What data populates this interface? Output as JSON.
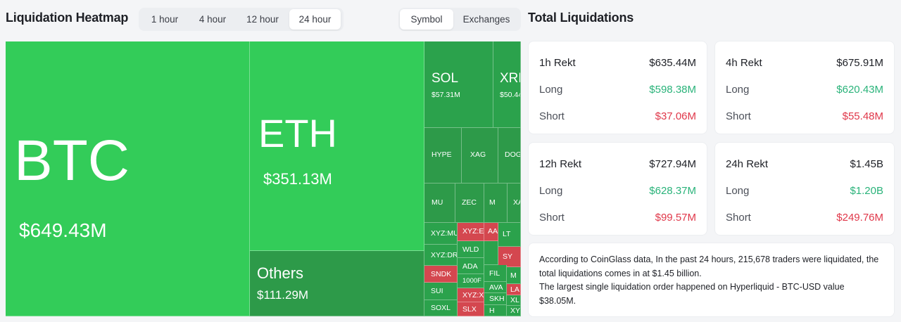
{
  "heatmap": {
    "title": "Liquidation Heatmap",
    "time_options": [
      "1 hour",
      "4 hour",
      "12 hour",
      "24 hour"
    ],
    "active_time": "24 hour",
    "view_options": [
      "Symbol",
      "Exchanges"
    ],
    "active_view": "Symbol",
    "tiles": {
      "btc": {
        "symbol": "BTC",
        "value": "$649.43M"
      },
      "eth": {
        "symbol": "ETH",
        "value": "$351.13M"
      },
      "others": {
        "symbol": "Others",
        "value": "$111.29M"
      },
      "sol": {
        "symbol": "SOL",
        "value": "$57.31M"
      },
      "xrp": {
        "symbol": "XRP",
        "value": "$50.44"
      },
      "hype": "HYPE",
      "xag": "XAG",
      "doge": "DOG",
      "mu": "MU",
      "zec": "ZEC",
      "m": "M",
      "xa": "XA",
      "xyz_mu": "XYZ:MU",
      "xyz_e": "XYZ:E",
      "aa": "AA",
      "xyz_dr": "XYZ:DR",
      "wld": "WLD",
      "sy": "SY",
      "snxd": "SNDK",
      "ada": "ADA",
      "fil": "FIL",
      "m2": "M",
      "sui": "SUI",
      "n1000": "1000F",
      "ava": "AVA",
      "la": "LA",
      "xyz_x": "XYZ:X",
      "skh": "SKH",
      "xl": "XL",
      "soxl": "SOXL",
      "slx": "SLX",
      "h": "H",
      "xy": "XY",
      "lt": "LT"
    }
  },
  "total": {
    "title": "Total Liquidations",
    "labels": {
      "long": "Long",
      "short": "Short"
    },
    "cards": [
      {
        "title": "1h Rekt",
        "total": "$635.44M",
        "long": "$598.38M",
        "short": "$37.06M"
      },
      {
        "title": "4h Rekt",
        "total": "$675.91M",
        "long": "$620.43M",
        "short": "$55.48M"
      },
      {
        "title": "12h Rekt",
        "total": "$727.94M",
        "long": "$628.37M",
        "short": "$99.57M"
      },
      {
        "title": "24h Rekt",
        "total": "$1.45B",
        "long": "$1.20B",
        "short": "$249.76M"
      }
    ],
    "summary_line1": "According to CoinGlass data, In the past 24 hours, 215,678 traders were liquidated, the total liquidations comes in at $1.45 billion.",
    "summary_line2": "The largest single liquidation order happened on Hyperliquid - BTC-USD value $38.05M."
  },
  "colors": {
    "long": "#2ab37a",
    "short": "#e0384a",
    "heat_green": "#33cc59",
    "heat_red": "#d4474f"
  }
}
